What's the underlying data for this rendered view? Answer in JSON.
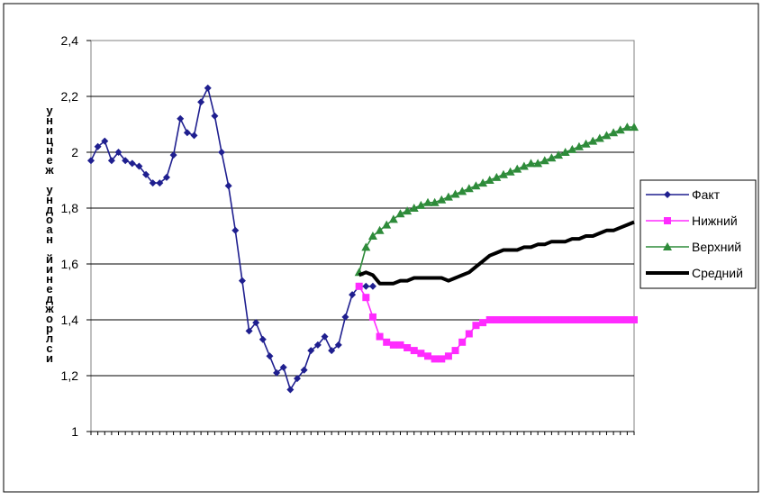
{
  "chart_data": {
    "type": "line",
    "title": "",
    "ylabel": "уницнеж ундоан йинеджорлси",
    "xlabel": "",
    "ylim": [
      1,
      2.4
    ],
    "yticks": [
      "1",
      "1,2",
      "1,4",
      "1,6",
      "1,8",
      "2",
      "2,2",
      "2,4"
    ],
    "ytick_values": [
      1,
      1.2,
      1.4,
      1.6,
      1.8,
      2,
      2.2,
      2.4
    ],
    "grid": true,
    "legend_position": "right",
    "n_points": 80,
    "series": [
      {
        "name": "Факт",
        "color": "#1f1f8f",
        "marker": "diamond",
        "x": [
          1,
          2,
          3,
          4,
          5,
          6,
          7,
          8,
          9,
          10,
          11,
          12,
          13,
          14,
          15,
          16,
          17,
          18,
          19,
          20,
          21,
          22,
          23,
          24,
          25,
          26,
          27,
          28,
          29,
          30,
          31,
          32,
          33,
          34,
          35,
          36,
          37,
          38,
          39,
          40,
          41,
          42
        ],
        "values": [
          1.97,
          2.02,
          2.04,
          1.97,
          2.0,
          1.97,
          1.96,
          1.95,
          1.92,
          1.89,
          1.89,
          1.91,
          1.99,
          2.12,
          2.07,
          2.06,
          2.18,
          2.23,
          2.13,
          2.0,
          1.88,
          1.72,
          1.54,
          1.36,
          1.39,
          1.33,
          1.27,
          1.21,
          1.23,
          1.15,
          1.19,
          1.22,
          1.29,
          1.31,
          1.34,
          1.29,
          1.31,
          1.41,
          1.49,
          1.52,
          1.52,
          1.52
        ]
      },
      {
        "name": "Нижний",
        "color": "#ff2bff",
        "marker": "square",
        "x": [
          40,
          41,
          42,
          43,
          44,
          45,
          46,
          47,
          48,
          49,
          50,
          51,
          52,
          53,
          54,
          55,
          56,
          57,
          58,
          59,
          60,
          61,
          62,
          63,
          64,
          65,
          66,
          67,
          68,
          69,
          70,
          71,
          72,
          73,
          74,
          75,
          76,
          77,
          78,
          79,
          80
        ],
        "values": [
          1.52,
          1.48,
          1.41,
          1.34,
          1.32,
          1.31,
          1.31,
          1.3,
          1.29,
          1.28,
          1.27,
          1.26,
          1.26,
          1.27,
          1.29,
          1.32,
          1.35,
          1.38,
          1.39,
          1.4,
          1.4,
          1.4,
          1.4,
          1.4,
          1.4,
          1.4,
          1.4,
          1.4,
          1.4,
          1.4,
          1.4,
          1.4,
          1.4,
          1.4,
          1.4,
          1.4,
          1.4,
          1.4,
          1.4,
          1.4,
          1.4
        ]
      },
      {
        "name": "Верхний",
        "color": "#2e8b3a",
        "marker": "triangle",
        "x": [
          40,
          41,
          42,
          43,
          44,
          45,
          46,
          47,
          48,
          49,
          50,
          51,
          52,
          53,
          54,
          55,
          56,
          57,
          58,
          59,
          60,
          61,
          62,
          63,
          64,
          65,
          66,
          67,
          68,
          69,
          70,
          71,
          72,
          73,
          74,
          75,
          76,
          77,
          78,
          79,
          80
        ],
        "values": [
          1.57,
          1.66,
          1.7,
          1.72,
          1.74,
          1.76,
          1.78,
          1.79,
          1.8,
          1.81,
          1.82,
          1.82,
          1.83,
          1.84,
          1.85,
          1.86,
          1.87,
          1.88,
          1.89,
          1.9,
          1.91,
          1.92,
          1.93,
          1.94,
          1.95,
          1.96,
          1.96,
          1.97,
          1.98,
          1.99,
          2.0,
          2.01,
          2.02,
          2.03,
          2.04,
          2.05,
          2.06,
          2.07,
          2.08,
          2.09,
          2.09
        ]
      },
      {
        "name": "Средний",
        "color": "#000000",
        "marker": "none",
        "x": [
          40,
          41,
          42,
          43,
          44,
          45,
          46,
          47,
          48,
          49,
          50,
          51,
          52,
          53,
          54,
          55,
          56,
          57,
          58,
          59,
          60,
          61,
          62,
          63,
          64,
          65,
          66,
          67,
          68,
          69,
          70,
          71,
          72,
          73,
          74,
          75,
          76,
          77,
          78,
          79,
          80
        ],
        "values": [
          1.56,
          1.57,
          1.56,
          1.53,
          1.53,
          1.53,
          1.54,
          1.54,
          1.55,
          1.55,
          1.55,
          1.55,
          1.55,
          1.54,
          1.55,
          1.56,
          1.57,
          1.59,
          1.61,
          1.63,
          1.64,
          1.65,
          1.65,
          1.65,
          1.66,
          1.66,
          1.67,
          1.67,
          1.68,
          1.68,
          1.68,
          1.69,
          1.69,
          1.7,
          1.7,
          1.71,
          1.72,
          1.72,
          1.73,
          1.74,
          1.75
        ]
      }
    ]
  }
}
